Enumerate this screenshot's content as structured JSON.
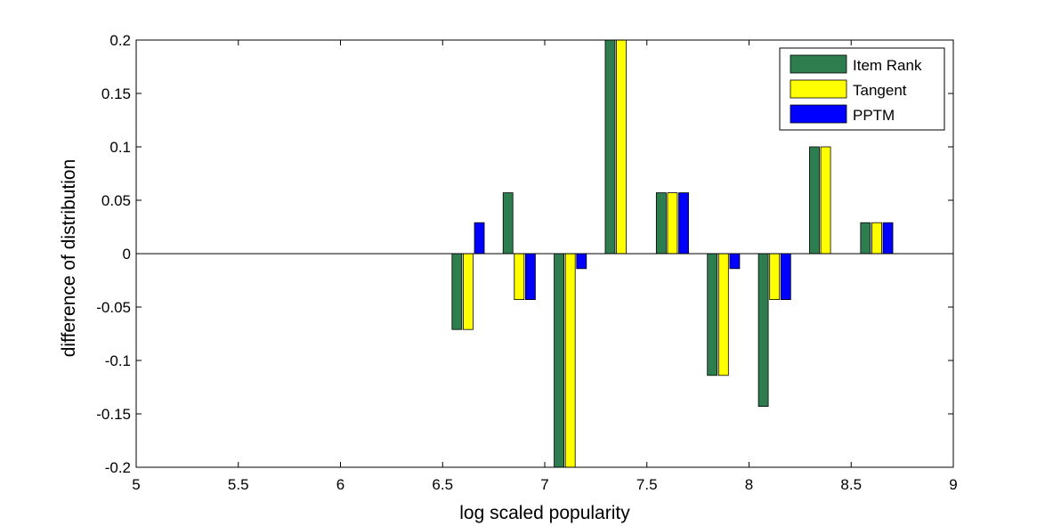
{
  "chart_data": {
    "type": "bar",
    "title": "",
    "xlabel": "log scaled popularity",
    "ylabel": "difference of distribution",
    "xlim": [
      5,
      9
    ],
    "ylim": [
      -0.2,
      0.2
    ],
    "xticks": [
      "5",
      "5.5",
      "6",
      "6.5",
      "7",
      "7.5",
      "8",
      "8.5",
      "9"
    ],
    "yticks": [
      "0.2",
      "0.15",
      "0.1",
      "0.05",
      "0",
      "-0.05",
      "-0.1",
      "-0.15",
      "-0.2"
    ],
    "x": [
      6.625,
      6.875,
      7.125,
      7.375,
      7.625,
      7.875,
      8.125,
      8.375,
      8.625
    ],
    "series": [
      {
        "name": "Item Rank",
        "color": "#2e7d4f",
        "values": [
          -0.071,
          0.057,
          -0.2,
          0.2,
          0.057,
          -0.114,
          -0.143,
          0.1,
          0.029
        ]
      },
      {
        "name": "Tangent",
        "color": "#ffff00",
        "values": [
          -0.071,
          -0.043,
          -0.2,
          0.2,
          0.057,
          -0.114,
          -0.043,
          0.1,
          0.029
        ]
      },
      {
        "name": "PPTM",
        "color": "#0000ff",
        "values": [
          0.029,
          -0.043,
          -0.014,
          0,
          0.057,
          -0.014,
          -0.043,
          0,
          0.029
        ]
      }
    ],
    "legend_position": "top-right",
    "grid": false
  }
}
